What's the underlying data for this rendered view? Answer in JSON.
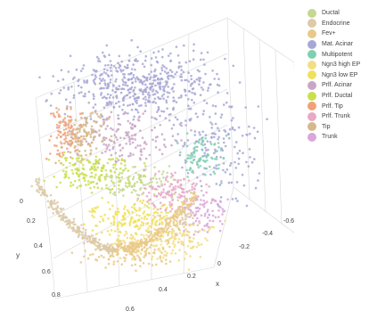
{
  "chart_data": {
    "type": "scatter",
    "dimensions": 3,
    "title": "",
    "axes": {
      "x": {
        "label": "x",
        "ticks": [
          "0",
          "0.2",
          "0.4",
          "0.6"
        ],
        "tick_values": [
          0,
          0.2,
          0.4,
          0.6
        ]
      },
      "y": {
        "label": "y",
        "ticks": [
          "0",
          "0.2",
          "0.4",
          "0.6",
          "0.8"
        ],
        "tick_values": [
          0,
          0.2,
          0.4,
          0.6,
          0.8
        ]
      },
      "z": {
        "label": "",
        "ticks": [
          "-0.2",
          "-0.4",
          "-0.6"
        ],
        "tick_values": [
          -0.2,
          -0.4,
          -0.6
        ]
      }
    },
    "grid": true,
    "legend_position": "right",
    "series": [
      {
        "name": "Ductal",
        "color": "#c6d88f"
      },
      {
        "name": "Endocrine",
        "color": "#dccaa8"
      },
      {
        "name": "Fev+",
        "color": "#e9c98a"
      },
      {
        "name": "Mat. Acinar",
        "color": "#a7a7d6"
      },
      {
        "name": "Multipotent",
        "color": "#7fd0b2"
      },
      {
        "name": "Ngn3 high EP",
        "color": "#f3de84"
      },
      {
        "name": "Ngn3 low EP",
        "color": "#f0e15c"
      },
      {
        "name": "Prlf. Acinar",
        "color": "#c9a6c7"
      },
      {
        "name": "Prlf. Ductal",
        "color": "#c9df4c"
      },
      {
        "name": "Prlf. Tip",
        "color": "#f2a07a"
      },
      {
        "name": "Prlf. Trunk",
        "color": "#e7a9c6"
      },
      {
        "name": "Tip",
        "color": "#d6b98a"
      },
      {
        "name": "Trunk",
        "color": "#dba6dc"
      }
    ]
  }
}
